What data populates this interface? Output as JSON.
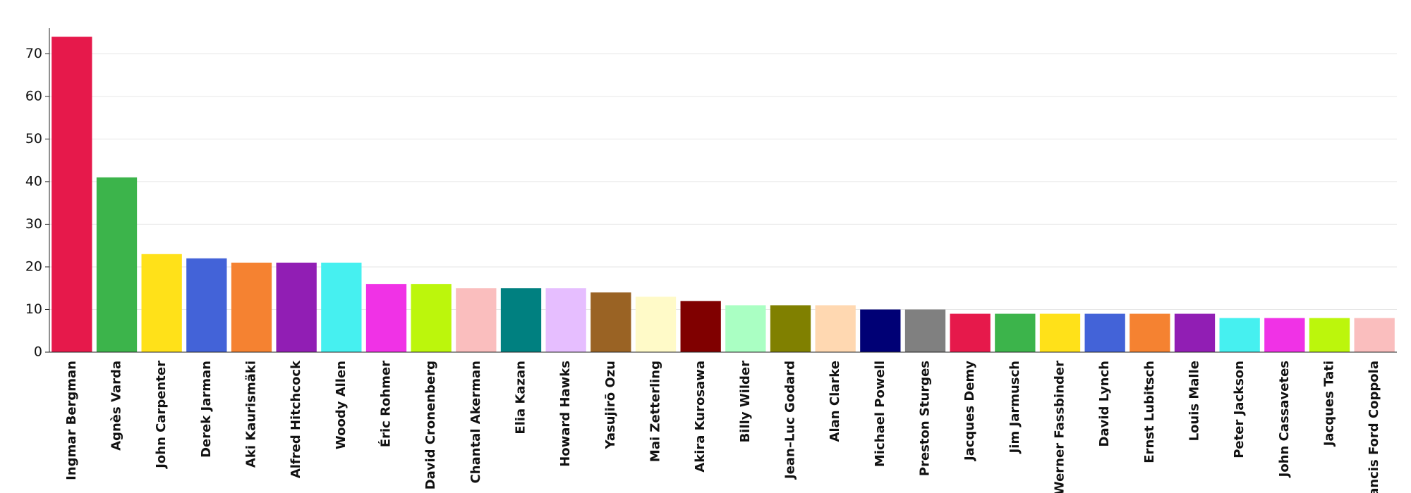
{
  "chart_data": {
    "type": "bar",
    "categories": [
      "Ingmar Bergman",
      "Agnès Varda",
      "John Carpenter",
      "Derek Jarman",
      "Aki Kaurismäki",
      "Alfred Hitchcock",
      "Woody Allen",
      "Éric Rohmer",
      "David Cronenberg",
      "Chantal Akerman",
      "Elia Kazan",
      "Howard Hawks",
      "Yasujirō Ozu",
      "Mai Zetterling",
      "Akira Kurosawa",
      "Billy Wilder",
      "Jean–Luc Godard",
      "Alan Clarke",
      "Michael Powell",
      "Preston Sturges",
      "Jacques Demy",
      "Jim Jarmusch",
      "Werner Fassbinder",
      "David Lynch",
      "Ernst Lubitsch",
      "Louis Malle",
      "Peter Jackson",
      "John Cassavetes",
      "Jacques Tati",
      "Francis Ford Coppola"
    ],
    "values": [
      74,
      41,
      23,
      22,
      21,
      21,
      21,
      16,
      16,
      15,
      15,
      15,
      14,
      13,
      12,
      11,
      11,
      11,
      10,
      10,
      9,
      9,
      9,
      9,
      9,
      9,
      8,
      8,
      8,
      8
    ],
    "colors": [
      "#e6194b",
      "#3cb44b",
      "#ffe119",
      "#4363d8",
      "#f58231",
      "#911eb4",
      "#46f0f0",
      "#f032e6",
      "#bcf60c",
      "#fabebe",
      "#008080",
      "#e6beff",
      "#9a6324",
      "#fffac8",
      "#800000",
      "#aaffc3",
      "#808000",
      "#ffd8b1",
      "#000075",
      "#808080",
      "#e6194b",
      "#3cb44b",
      "#ffe119",
      "#4363d8",
      "#f58231",
      "#911eb4",
      "#46f0f0",
      "#f032e6",
      "#bcf60c",
      "#fabebe"
    ],
    "ylim": [
      0,
      76
    ],
    "yticks": [
      0,
      10,
      20,
      30,
      40,
      50,
      60,
      70
    ],
    "grid": true
  }
}
